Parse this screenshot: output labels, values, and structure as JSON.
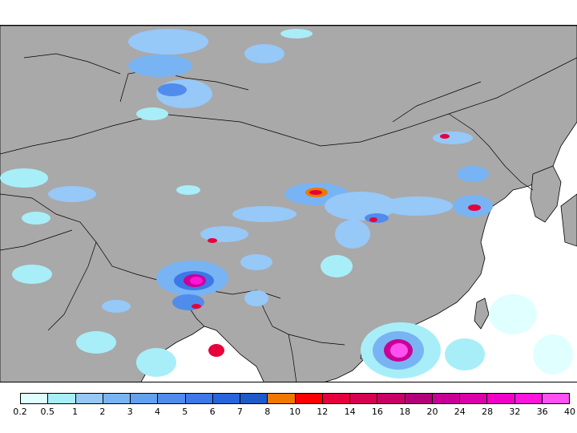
{
  "map": {
    "land_color": "#a9a9a9",
    "ocean_color": "#ffffff",
    "coastline_color": "#000000"
  },
  "legend": {
    "levels": [
      "0.2",
      "0.5",
      "1",
      "2",
      "3",
      "4",
      "5",
      "6",
      "7",
      "8",
      "10",
      "12",
      "14",
      "16",
      "18",
      "20",
      "24",
      "28",
      "32",
      "36",
      "40"
    ],
    "colors": [
      "#e0ffff",
      "#a8eef8",
      "#96c8f8",
      "#78b4f4",
      "#64a0f0",
      "#508cec",
      "#3c78e8",
      "#2864dc",
      "#1e5ac8",
      "#f07800",
      "#ff0000",
      "#e8003c",
      "#d80050",
      "#c80064",
      "#b40078",
      "#c80096",
      "#dc00aa",
      "#f000c8",
      "#ff14dc",
      "#ff50f0"
    ]
  }
}
